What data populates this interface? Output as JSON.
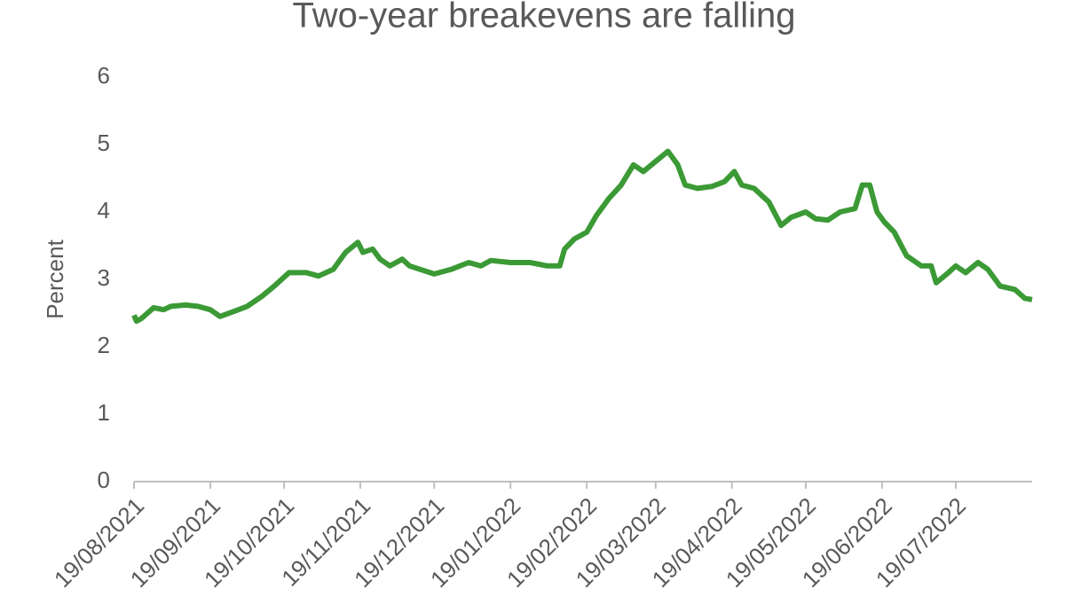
{
  "chart_data": {
    "type": "line",
    "title": "Two-year breakevens are falling",
    "y_label": "Percent",
    "xlim": [
      "19/08/2021",
      "19/08/2022"
    ],
    "xticks": [
      "19/08/2021",
      "19/09/2021",
      "19/10/2021",
      "19/11/2021",
      "19/12/2021",
      "19/01/2022",
      "19/02/2022",
      "19/03/2022",
      "19/04/2022",
      "19/05/2022",
      "19/06/2022",
      "19/07/2022"
    ],
    "ylim": [
      0,
      6
    ],
    "yticks": [
      0,
      1,
      2,
      3,
      4,
      5,
      6
    ],
    "grid": false,
    "series": [
      {
        "name": "Two-year breakevens",
        "color": "#3b9a35",
        "x": [
          "19/08/2021",
          "20/08/2021",
          "22/08/2021",
          "27/08/2021",
          "31/08/2021",
          "03/09/2021",
          "09/09/2021",
          "14/09/2021",
          "19/09/2021",
          "23/09/2021",
          "29/09/2021",
          "04/10/2021",
          "10/10/2021",
          "15/10/2021",
          "21/10/2021",
          "28/10/2021",
          "02/11/2021",
          "08/11/2021",
          "13/11/2021",
          "18/11/2021",
          "20/11/2021",
          "24/11/2021",
          "27/11/2021",
          "01/12/2021",
          "06/12/2021",
          "09/12/2021",
          "19/12/2021",
          "26/12/2021",
          "02/01/2022",
          "07/01/2022",
          "11/01/2022",
          "19/01/2022",
          "27/01/2022",
          "03/02/2022",
          "08/02/2022",
          "10/02/2022",
          "14/02/2022",
          "19/02/2022",
          "23/02/2022",
          "28/02/2022",
          "05/03/2022",
          "10/03/2022",
          "14/03/2022",
          "19/03/2022",
          "24/03/2022",
          "28/03/2022",
          "31/03/2022",
          "05/04/2022",
          "11/04/2022",
          "16/04/2022",
          "20/04/2022",
          "23/04/2022",
          "28/04/2022",
          "04/05/2022",
          "09/05/2022",
          "13/05/2022",
          "19/05/2022",
          "23/05/2022",
          "28/05/2022",
          "02/06/2022",
          "08/06/2022",
          "11/06/2022",
          "14/06/2022",
          "17/06/2022",
          "20/06/2022",
          "24/06/2022",
          "29/06/2022",
          "05/07/2022",
          "09/07/2022",
          "11/07/2022",
          "16/07/2022",
          "19/07/2022",
          "23/07/2022",
          "28/07/2022",
          "01/08/2022",
          "06/08/2022",
          "12/08/2022",
          "16/08/2022",
          "19/08/2022"
        ],
        "values": [
          2.47,
          2.38,
          2.42,
          2.58,
          2.55,
          2.6,
          2.62,
          2.6,
          2.55,
          2.45,
          2.53,
          2.6,
          2.75,
          2.9,
          3.1,
          3.1,
          3.05,
          3.15,
          3.4,
          3.55,
          3.4,
          3.45,
          3.3,
          3.2,
          3.3,
          3.2,
          3.08,
          3.15,
          3.25,
          3.2,
          3.28,
          3.25,
          3.25,
          3.2,
          3.2,
          3.45,
          3.6,
          3.7,
          3.95,
          4.2,
          4.4,
          4.7,
          4.6,
          4.75,
          4.9,
          4.7,
          4.4,
          4.35,
          4.38,
          4.45,
          4.6,
          4.4,
          4.35,
          4.15,
          3.8,
          3.92,
          4.0,
          3.9,
          3.88,
          4.0,
          4.05,
          4.4,
          4.4,
          4.0,
          3.85,
          3.7,
          3.35,
          3.2,
          3.2,
          2.95,
          3.1,
          3.2,
          3.1,
          3.25,
          3.15,
          2.9,
          2.85,
          2.72,
          2.7
        ]
      }
    ]
  }
}
